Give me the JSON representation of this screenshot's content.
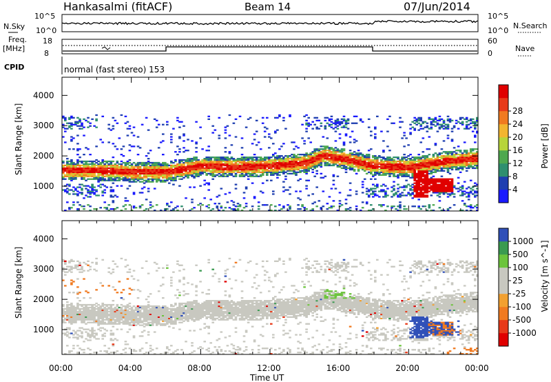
{
  "header": {
    "station": "Hankasalmi (fitACF)",
    "beam": "Beam 14",
    "date": "07/Jun/2014"
  },
  "small_panels": {
    "nsky_label": "N.Sky",
    "nsky_ticks": [
      "10^5",
      "10^0"
    ],
    "nsearch_label": "N.Search",
    "nsearch_ticks": [
      "10^5",
      "10^0"
    ],
    "freq_label_1": "Freq.",
    "freq_label_2": "[MHz]",
    "freq_ticks": [
      "18",
      "8"
    ],
    "nave_label": "Nave",
    "nave_ticks": [
      "60",
      "0"
    ],
    "cpid_label": "CPID",
    "cpid_text": "normal (fast stereo) 153"
  },
  "colors": {
    "power_scale": [
      "#1a1aff",
      "#1f3fb0",
      "#2f8f6f",
      "#4fa84f",
      "#b7d43a",
      "#f2b530",
      "#f07a20",
      "#e83a1a",
      "#e00000"
    ],
    "velocity_scale": [
      "#e00000",
      "#e83a1a",
      "#f07a20",
      "#f2a030",
      "#c8c8c0",
      "#c8c8c0",
      "#6cc43c",
      "#3a9a50",
      "#3050b8"
    ],
    "ground_scatter": "#c8c8c0"
  },
  "chart_data": [
    {
      "type": "heatmap",
      "name": "power",
      "xlabel": "Time UT",
      "ylabel": "Slant Range [km]",
      "colorbar_label": "Power [dB]",
      "colorbar_ticks": [
        "4",
        "8",
        "12",
        "16",
        "20",
        "24",
        "28"
      ],
      "x_ticks": [
        "00:00",
        "04:00",
        "08:00",
        "12:00",
        "16:00",
        "20:00",
        "00:00"
      ],
      "y_ticks": [
        "1000",
        "2000",
        "3000",
        "4000"
      ],
      "xlim": [
        0,
        24
      ],
      "ylim": [
        180,
        4600
      ],
      "band_center_km": [
        [
          0,
          1500
        ],
        [
          2,
          1500
        ],
        [
          4,
          1450
        ],
        [
          6,
          1450
        ],
        [
          8,
          1650
        ],
        [
          10,
          1600
        ],
        [
          12,
          1650
        ],
        [
          14,
          1750
        ],
        [
          15,
          2000
        ],
        [
          16,
          1900
        ],
        [
          18,
          1650
        ],
        [
          20,
          1600
        ],
        [
          22,
          1800
        ],
        [
          24,
          1900
        ]
      ]
    },
    {
      "type": "heatmap",
      "name": "velocity",
      "xlabel": "Time UT",
      "ylabel": "Slant Range [km]",
      "colorbar_label": "Velocity [m s^-1]",
      "colorbar_ticks": [
        "-1000",
        "-500",
        "-100",
        "-25",
        "25",
        "100",
        "500",
        "1000"
      ],
      "x_ticks": [
        "00:00",
        "04:00",
        "08:00",
        "12:00",
        "16:00",
        "20:00",
        "00:00"
      ],
      "y_ticks": [
        "1000",
        "2000",
        "3000",
        "4000"
      ],
      "xlim": [
        0,
        24
      ],
      "ylim": [
        180,
        4600
      ]
    }
  ]
}
